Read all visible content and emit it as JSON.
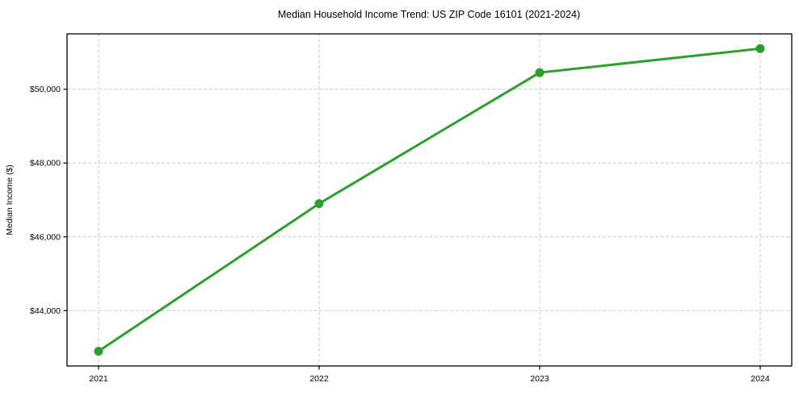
{
  "chart_data": {
    "type": "line",
    "title": "Median Household Income Trend: US ZIP Code 16101 (2021-2024)",
    "xlabel": "",
    "ylabel": "Median Income ($)",
    "categories": [
      "2021",
      "2022",
      "2023",
      "2024"
    ],
    "series": [
      {
        "name": "Median Household Income",
        "values": [
          42900,
          46900,
          50450,
          51100
        ]
      }
    ],
    "yticks": [
      44000,
      46000,
      48000,
      50000
    ],
    "ytick_labels": [
      "$44,000",
      "$46,000",
      "$48,000",
      "$50,000"
    ],
    "ylim": [
      42500,
      51500
    ],
    "grid": "both-dashed",
    "legend": "none",
    "colors": {
      "line": "#2ca02c",
      "marker": "#2ca02c",
      "grid": "#c9c9c9",
      "axis": "#000000",
      "text": "#000000",
      "background": "#ffffff"
    }
  }
}
